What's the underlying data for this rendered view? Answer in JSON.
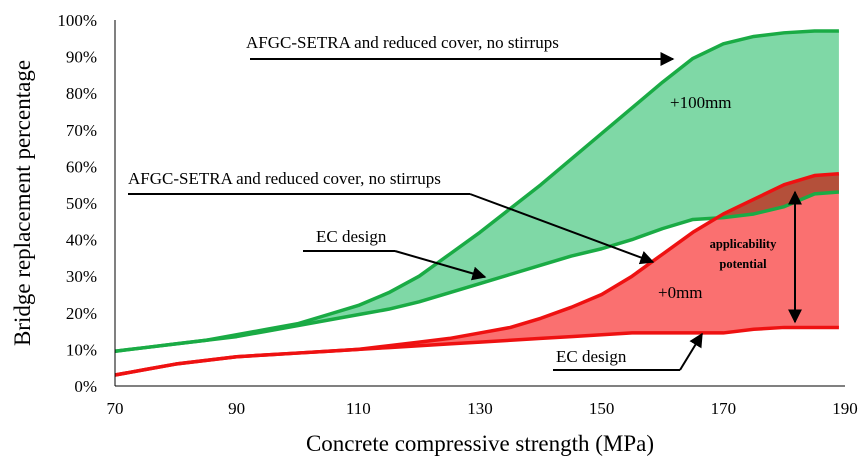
{
  "chart_data": {
    "type": "area",
    "xlabel": "Concrete compressive strength (MPa)",
    "ylabel": "Bridge replacement percentage",
    "xlim": [
      70,
      190
    ],
    "ylim": [
      0,
      100
    ],
    "x_ticks": [
      "70",
      "90",
      "110",
      "130",
      "150",
      "170",
      "190"
    ],
    "y_ticks": [
      "0%",
      "10%",
      "20%",
      "30%",
      "40%",
      "50%",
      "60%",
      "70%",
      "80%",
      "90%",
      "100%"
    ],
    "grid": false,
    "colors": {
      "green_line": "#1aab45",
      "green_fill": "#7fd8a6",
      "red_line": "#ee1111",
      "red_fill": "#fa7070",
      "dark_fill": "#b4503a"
    },
    "series": [
      {
        "role": "green_upper",
        "x": [
          70,
          75,
          80,
          85,
          90,
          95,
          100,
          105,
          110,
          115,
          120,
          125,
          130,
          135,
          140,
          145,
          150,
          155,
          160,
          165,
          170,
          175,
          180,
          185,
          189
        ],
        "y": [
          9.5,
          10.5,
          11.5,
          12.5,
          14,
          15.5,
          17,
          19.5,
          22,
          25.5,
          30,
          36,
          42,
          48.5,
          55,
          62,
          69,
          76,
          83,
          89.5,
          93.5,
          95.5,
          96.5,
          97,
          97
        ]
      },
      {
        "role": "green_lower",
        "x": [
          70,
          75,
          80,
          85,
          90,
          95,
          100,
          105,
          110,
          115,
          120,
          125,
          130,
          135,
          140,
          145,
          150,
          155,
          160,
          165,
          170,
          175,
          180,
          185,
          189
        ],
        "y": [
          9.5,
          10.5,
          11.5,
          12.5,
          13.5,
          15,
          16.5,
          18,
          19.5,
          21,
          23,
          25.5,
          28,
          30.5,
          33,
          35.5,
          37.5,
          40,
          43,
          45.5,
          46,
          47,
          49,
          52.5,
          53
        ]
      },
      {
        "role": "red_upper",
        "x": [
          70,
          75,
          80,
          85,
          90,
          95,
          100,
          105,
          110,
          115,
          120,
          125,
          130,
          135,
          140,
          145,
          150,
          155,
          160,
          165,
          170,
          175,
          180,
          185,
          189
        ],
        "y": [
          3,
          4.5,
          6,
          7,
          8,
          8.5,
          9,
          9.5,
          10,
          11,
          12,
          13,
          14.5,
          16,
          18.5,
          21.5,
          25,
          30,
          36,
          42,
          47,
          51,
          55,
          57.5,
          58
        ]
      },
      {
        "role": "red_lower",
        "x": [
          70,
          75,
          80,
          85,
          90,
          95,
          100,
          105,
          110,
          115,
          120,
          125,
          130,
          135,
          140,
          145,
          150,
          155,
          160,
          165,
          170,
          175,
          180,
          185,
          189
        ],
        "y": [
          3,
          4.5,
          6,
          7,
          8,
          8.5,
          9,
          9.5,
          10,
          10.5,
          11,
          11.5,
          12,
          12.5,
          13,
          13.5,
          14,
          14.5,
          14.5,
          14.5,
          14.5,
          15.5,
          16,
          16,
          16
        ]
      }
    ],
    "annotations": {
      "green_top_label": "AFGC-SETRA and reduced cover, no stirrups",
      "red_top_label": "AFGC-SETRA and reduced cover, no stirrups",
      "green_ec_label": "EC design",
      "red_ec_label": "EC design",
      "green_fill_label": "+100mm",
      "red_fill_label": "+0mm",
      "applicability_line1": "applicability",
      "applicability_line2": "potential"
    }
  }
}
